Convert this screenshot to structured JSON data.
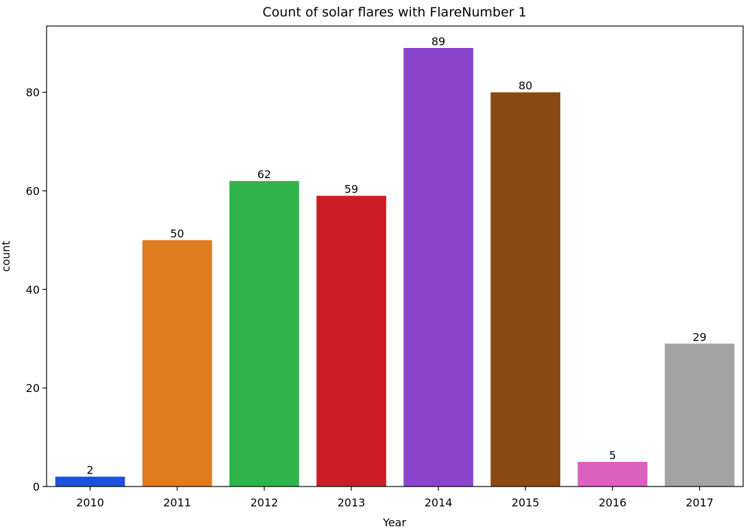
{
  "chart_data": {
    "type": "bar",
    "title": "Count of solar flares with FlareNumber 1",
    "xlabel": "Year",
    "ylabel": "count",
    "categories": [
      "2010",
      "2011",
      "2012",
      "2013",
      "2014",
      "2015",
      "2016",
      "2017"
    ],
    "values": [
      2,
      50,
      62,
      59,
      89,
      80,
      5,
      29
    ],
    "data_labels": [
      "2",
      "50",
      "62",
      "59",
      "89",
      "80",
      "5",
      "29"
    ],
    "colors": [
      "#1f4fe0",
      "#e07c1f",
      "#30b34a",
      "#cc1d25",
      "#8a44cc",
      "#8a4912",
      "#dc60c0",
      "#a3a3a3"
    ],
    "ylim": [
      0,
      93.45
    ],
    "yticks": [
      0,
      20,
      40,
      60,
      80
    ],
    "ytick_labels": [
      "0",
      "20",
      "40",
      "60",
      "80"
    ],
    "grid": false,
    "legend": "none"
  }
}
